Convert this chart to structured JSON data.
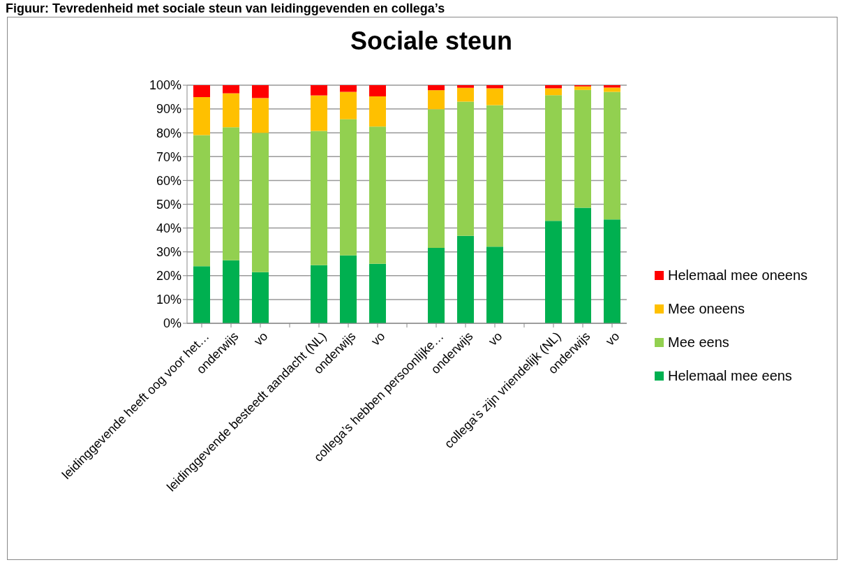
{
  "chart_data": {
    "type": "bar",
    "title": "Sociale steun",
    "annotations": [
      "Figuur: Tevredenheid met sociale steun van leidinggevenden en collega’s"
    ],
    "categories": [
      "leidinggevende heeft oog voor het…",
      "onderwijs",
      "vo",
      null,
      "leidinggevende besteedt aandacht (NL)",
      "onderwijs",
      "vo",
      null,
      "collega’s hebben persoonlijke…",
      "onderwijs",
      "vo",
      null,
      "collega’s zijn vriendelijk (NL)",
      "onderwijs",
      "vo"
    ],
    "stacked": true,
    "series": [
      {
        "name": "Helemaal mee eens",
        "color": "#00b050",
        "values": [
          24,
          26.5,
          21.5,
          null,
          24.4,
          28.5,
          25,
          null,
          31.7,
          36.7,
          32.2,
          null,
          43.0,
          48.5,
          43.6
        ]
      },
      {
        "name": "Mee eens",
        "color": "#92d050",
        "values": [
          55,
          55.8,
          58.5,
          null,
          56.4,
          57.2,
          57.6,
          null,
          58.2,
          56.4,
          59.4,
          null,
          52.8,
          49.5,
          53.6
        ]
      },
      {
        "name": "Mee oneens",
        "color": "#ffc000",
        "values": [
          16,
          14.3,
          14.6,
          null,
          14.9,
          11.5,
          12.7,
          null,
          8.0,
          5.8,
          7.1,
          null,
          2.9,
          1.5,
          1.8
        ]
      },
      {
        "name": "Helemaal mee oneens",
        "color": "#ff0000",
        "values": [
          5,
          3.4,
          5.4,
          null,
          4.3,
          2.8,
          4.7,
          null,
          2.1,
          1.1,
          1.3,
          null,
          1.3,
          0.5,
          1.0
        ]
      }
    ],
    "ylim": [
      0,
      100
    ],
    "yticks": [
      {
        "value": 0,
        "label": "0%"
      },
      {
        "value": 10,
        "label": "10%"
      },
      {
        "value": 20,
        "label": "20%"
      },
      {
        "value": 30,
        "label": "30%"
      },
      {
        "value": 40,
        "label": "40%"
      },
      {
        "value": 50,
        "label": "50%"
      },
      {
        "value": 60,
        "label": "60%"
      },
      {
        "value": 70,
        "label": "70%"
      },
      {
        "value": 80,
        "label": "80%"
      },
      {
        "value": 90,
        "label": "90%"
      },
      {
        "value": 100,
        "label": "100%"
      }
    ],
    "grid": "y",
    "legend": "right"
  }
}
